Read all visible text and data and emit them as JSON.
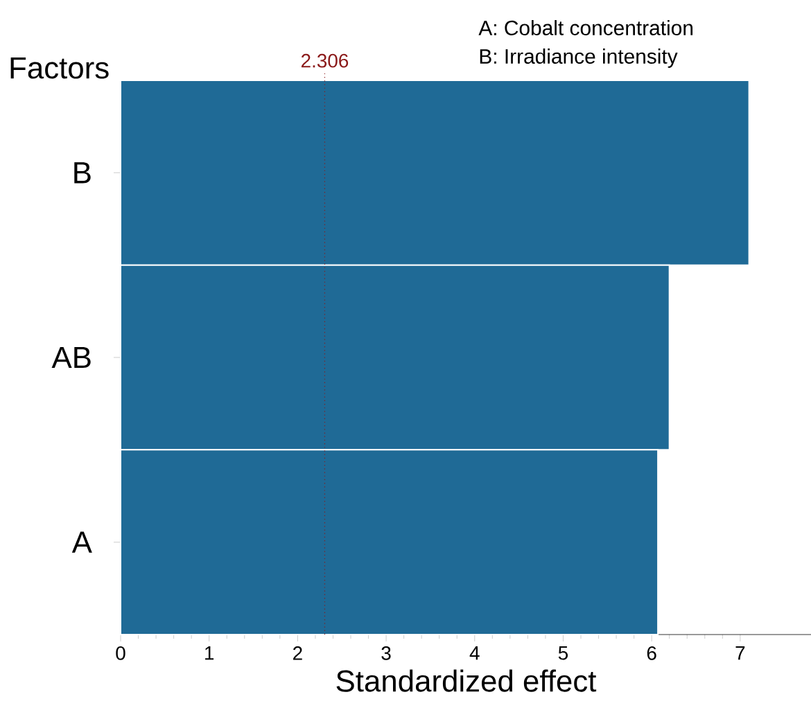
{
  "chart_data": {
    "type": "bar",
    "orientation": "horizontal",
    "ylabel": "Factors",
    "xlabel": "Standardized effect",
    "categories": [
      "B",
      "AB",
      "A"
    ],
    "values": [
      7.1,
      6.2,
      6.07
    ],
    "color": "#1f6a96",
    "xlim": [
      0,
      7.8
    ],
    "xticks": [
      0,
      1,
      2,
      3,
      4,
      5,
      6,
      7
    ],
    "ref_lines": [
      {
        "axis": "x",
        "value": 2.306,
        "label": "2.306",
        "color": "#8b1a1a",
        "line_style": "dotted"
      }
    ],
    "annotations": [
      "A: Cobalt concentration",
      "B:  Irradiance intensity"
    ]
  }
}
